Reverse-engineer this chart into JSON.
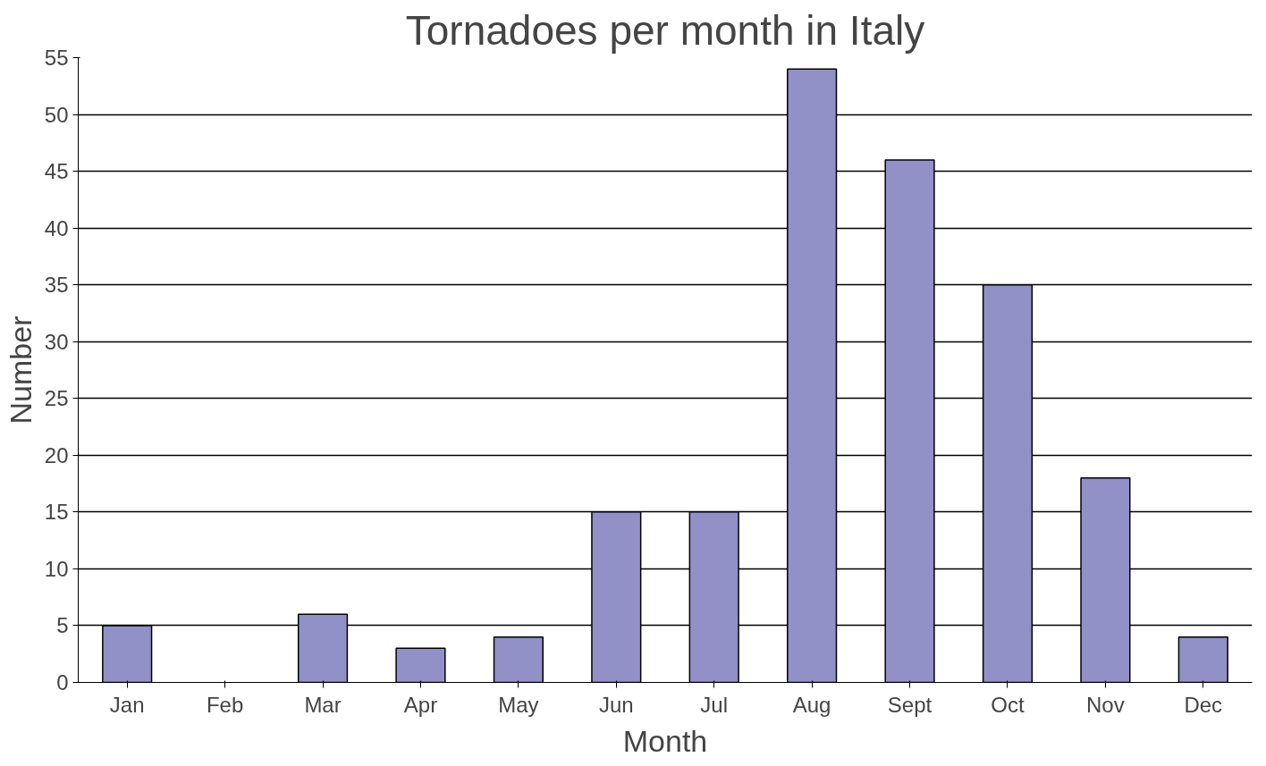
{
  "chart_data": {
    "type": "bar",
    "title": "Tornadoes per month in Italy",
    "xlabel": "Month",
    "ylabel": "Number",
    "categories": [
      "Jan",
      "Feb",
      "Mar",
      "Apr",
      "May",
      "Jun",
      "Jul",
      "Aug",
      "Sept",
      "Oct",
      "Nov",
      "Dec"
    ],
    "values": [
      5,
      0,
      6,
      3,
      4,
      15,
      15,
      54,
      46,
      35,
      18,
      4
    ],
    "color": "#9191c8",
    "ylim": [
      0,
      55
    ],
    "yticks": [
      0,
      5,
      10,
      15,
      20,
      25,
      30,
      35,
      40,
      45,
      50,
      55
    ],
    "grid": "y"
  }
}
